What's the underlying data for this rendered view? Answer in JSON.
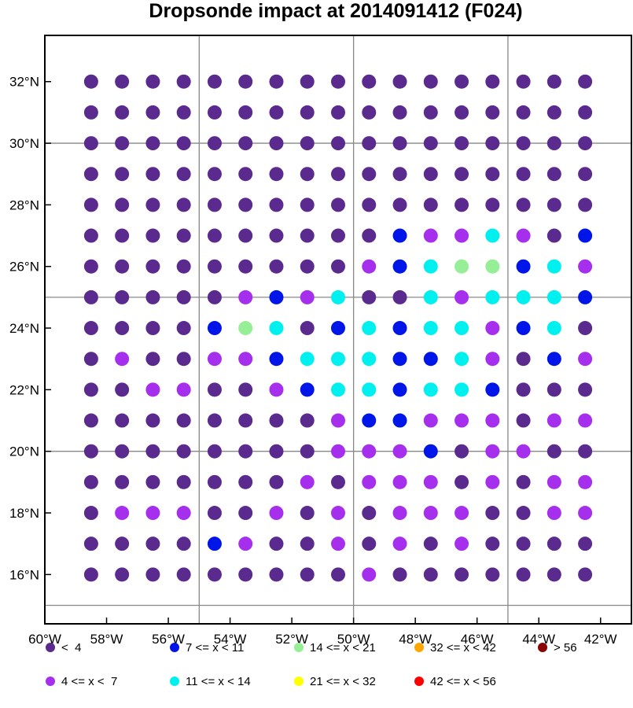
{
  "chart_data": {
    "type": "scatter",
    "title": "Dropsonde impact at 2014091412 (F024)",
    "x_axis": {
      "ticks": [
        -60,
        -58,
        -56,
        -54,
        -52,
        -50,
        -48,
        -46,
        -44,
        -42
      ],
      "tick_labels": [
        "60°W",
        "58°W",
        "56°W",
        "54°W",
        "52°W",
        "50°W",
        "48°W",
        "46°W",
        "44°W",
        "42°W"
      ],
      "range": [
        -60,
        -41
      ]
    },
    "y_axis": {
      "ticks": [
        16,
        18,
        20,
        22,
        24,
        26,
        28,
        30,
        32
      ],
      "tick_labels": [
        "16°N",
        "18°N",
        "20°N",
        "22°N",
        "24°N",
        "26°N",
        "28°N",
        "30°N",
        "32°N"
      ],
      "range": [
        14.4,
        33.5
      ]
    },
    "grid": true,
    "grid_lon": [
      -55,
      -50,
      -45
    ],
    "grid_lat": [
      15,
      20,
      25,
      30
    ],
    "lon": [
      -58.5,
      -57.5,
      -56.5,
      -55.5,
      -54.5,
      -53.5,
      -52.5,
      -51.5,
      -50.5,
      -49.5,
      -48.5,
      -47.5,
      -46.5,
      -45.5,
      -44.5,
      -43.5,
      -42.5
    ],
    "lat": [
      32,
      31,
      30,
      29,
      28,
      27,
      26,
      25,
      24,
      23,
      22,
      21,
      20,
      19,
      18,
      17,
      16
    ],
    "category_grid": [
      "00000000000000000",
      "00000000000000000",
      "00000000000000000",
      "00000000000000000",
      "00000000000000000",
      "00000000002113102",
      "00000000012344231",
      "00000121300313332",
      "00002430232331230",
      "01001123332231021",
      "00110012332332000",
      "00000000122111011",
      "00000000111201100",
      "00000001011101011",
      "01110010101110011",
      "00002100101010000",
      "00000000010000000"
    ],
    "categories": [
      {
        "label": "<  4",
        "color": "#5b2a8e"
      },
      {
        "label": "4 <= x <  7",
        "color": "#a52fed"
      },
      {
        "label": "7 <= x < 11",
        "color": "#0015e8"
      },
      {
        "label": "11 <= x < 14",
        "color": "#00f0f0"
      },
      {
        "label": "14 <= x < 21",
        "color": "#96ee96"
      },
      {
        "label": "21 <= x < 32",
        "color": "#ffff00"
      },
      {
        "label": "32 <= x < 42",
        "color": "#ffa500"
      },
      {
        "label": "42 <= x < 56",
        "color": "#ff0000"
      },
      {
        "label": "> 56",
        "color": "#8b0000"
      }
    ],
    "legend": {
      "placement": "bottom",
      "columns": 5,
      "order": [
        0,
        2,
        4,
        6,
        8,
        1,
        3,
        5,
        7
      ]
    }
  }
}
